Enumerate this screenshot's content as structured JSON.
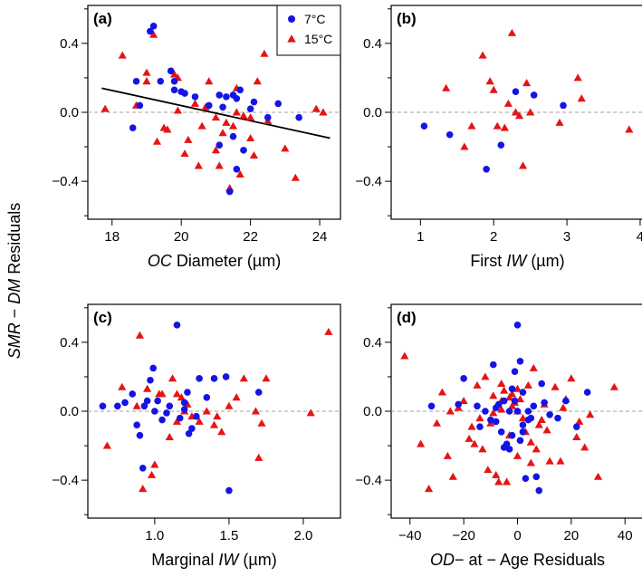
{
  "figure": {
    "ylabel_parts": [
      {
        "text": "SMR",
        "italic": true
      },
      {
        "text": " − ",
        "italic": false
      },
      {
        "text": "DM",
        "italic": true
      },
      {
        "text": " Residuals",
        "italic": false
      }
    ],
    "colors": {
      "blue": "#1414e6",
      "red": "#e61414",
      "zero_line": "#a0a0a0",
      "trend": "#000000"
    }
  },
  "legend": {
    "entries": [
      {
        "label": "7°C",
        "series": "7C",
        "marker": "circle"
      },
      {
        "label": "15°C",
        "series": "15C",
        "marker": "triangle"
      }
    ]
  },
  "chart_data": [
    {
      "type": "scatter",
      "panel": "(a)",
      "xlabel_parts": [
        {
          "text": "OC",
          "italic": true
        },
        {
          "text": " Diameter (µm)",
          "italic": false
        }
      ],
      "xlim": [
        17.3,
        24.6
      ],
      "ylim": [
        -0.62,
        0.62
      ],
      "xticks": [
        18,
        20,
        22,
        24
      ],
      "yticks": [
        -0.4,
        0.0,
        0.4
      ],
      "yticks_minor": [
        -0.6,
        -0.2,
        0.2,
        0.6
      ],
      "zero_line": true,
      "trend_line": {
        "x": [
          17.7,
          24.3
        ],
        "y": [
          0.14,
          -0.15
        ]
      },
      "series": [
        {
          "name": "7C",
          "label": "7°C",
          "x": [
            18.6,
            18.7,
            18.8,
            19.2,
            19.1,
            19.4,
            19.7,
            19.8,
            19.8,
            20.0,
            20.1,
            20.4,
            20.8,
            21.1,
            21.2,
            21.5,
            21.6,
            21.5,
            21.4,
            21.6,
            21.8,
            22.0,
            22.1,
            22.5,
            22.8,
            23.4,
            21.3,
            21.7,
            21.1
          ],
          "y": [
            -0.09,
            0.18,
            0.04,
            0.5,
            0.47,
            0.18,
            0.24,
            0.18,
            0.13,
            0.12,
            0.11,
            0.09,
            0.04,
            0.1,
            0.03,
            0.1,
            0.08,
            -0.14,
            -0.46,
            -0.33,
            -0.22,
            0.02,
            0.06,
            -0.03,
            0.05,
            -0.03,
            0.09,
            0.13,
            -0.19
          ]
        },
        {
          "name": "15C",
          "label": "15°C",
          "x": [
            17.8,
            18.3,
            18.7,
            19.0,
            19.0,
            19.2,
            19.3,
            19.5,
            19.6,
            19.8,
            19.9,
            20.1,
            20.2,
            20.5,
            20.6,
            20.7,
            20.8,
            21.0,
            21.1,
            21.2,
            21.3,
            21.4,
            21.5,
            21.6,
            21.7,
            21.8,
            22.0,
            22.1,
            22.2,
            22.4,
            22.5,
            23.0,
            23.3,
            23.9,
            24.1,
            19.9,
            20.4,
            21.6,
            22.0,
            21.0
          ],
          "y": [
            0.02,
            0.33,
            0.04,
            0.23,
            0.18,
            0.45,
            -0.17,
            -0.09,
            -0.1,
            0.22,
            0.2,
            -0.24,
            -0.16,
            -0.31,
            -0.08,
            0.03,
            0.18,
            -0.22,
            -0.31,
            -0.12,
            -0.06,
            -0.44,
            -0.08,
            0.14,
            -0.36,
            -0.02,
            -0.03,
            -0.25,
            0.18,
            0.34,
            -0.05,
            -0.21,
            -0.38,
            0.02,
            0.0,
            0.01,
            0.05,
            0.0,
            -0.15,
            -0.03
          ]
        }
      ]
    },
    {
      "type": "scatter",
      "panel": "(b)",
      "xlabel_parts": [
        {
          "text": "First ",
          "italic": false
        },
        {
          "text": "IW",
          "italic": true
        },
        {
          "text": " (µm)",
          "italic": false
        }
      ],
      "xlim": [
        0.6,
        4.05
      ],
      "ylim": [
        -0.62,
        0.62
      ],
      "xticks": [
        1,
        2,
        3,
        4
      ],
      "yticks": [
        -0.4,
        0.0,
        0.4
      ],
      "yticks_minor": [
        -0.6,
        -0.2,
        0.2,
        0.6
      ],
      "zero_line": true,
      "series": [
        {
          "name": "7C",
          "label": "7°C",
          "x": [
            1.05,
            1.4,
            1.9,
            2.1,
            2.3,
            2.55,
            2.95
          ],
          "y": [
            -0.08,
            -0.13,
            -0.33,
            -0.19,
            0.12,
            0.1,
            0.04
          ]
        },
        {
          "name": "15C",
          "label": "15°C",
          "x": [
            1.35,
            1.6,
            1.7,
            1.85,
            1.95,
            2.0,
            2.05,
            2.2,
            2.25,
            2.3,
            2.35,
            2.4,
            2.45,
            2.5,
            2.9,
            3.15,
            3.2,
            3.85,
            2.15
          ],
          "y": [
            0.14,
            -0.2,
            -0.08,
            0.33,
            0.18,
            0.13,
            -0.08,
            0.05,
            0.46,
            0.0,
            -0.02,
            -0.31,
            0.17,
            0.0,
            -0.06,
            0.2,
            0.08,
            -0.1,
            -0.09
          ]
        }
      ]
    },
    {
      "type": "scatter",
      "panel": "(c)",
      "xlabel_parts": [
        {
          "text": "Marginal ",
          "italic": false
        },
        {
          "text": "IW",
          "italic": true
        },
        {
          "text": " (µm)",
          "italic": false
        }
      ],
      "xlim": [
        0.55,
        2.25
      ],
      "ylim": [
        -0.62,
        0.62
      ],
      "xticks": [
        1.0,
        1.5,
        2.0
      ],
      "yticks": [
        -0.4,
        0.0,
        0.4
      ],
      "yticks_minor": [
        -0.6,
        -0.2,
        0.2,
        0.6
      ],
      "zero_line": true,
      "series": [
        {
          "name": "7C",
          "label": "7°C",
          "x": [
            0.65,
            0.75,
            0.8,
            0.85,
            0.88,
            0.9,
            0.92,
            0.95,
            0.97,
            0.99,
            1.0,
            1.02,
            1.05,
            1.08,
            1.1,
            1.15,
            1.17,
            1.2,
            1.22,
            1.25,
            1.28,
            1.3,
            1.35,
            1.4,
            1.48,
            1.5,
            1.7,
            1.2,
            1.23,
            0.93
          ],
          "y": [
            0.03,
            0.03,
            0.05,
            0.1,
            -0.08,
            -0.14,
            -0.33,
            0.06,
            0.18,
            0.25,
            0.0,
            0.06,
            -0.05,
            -0.01,
            0.03,
            0.5,
            -0.04,
            0.01,
            0.11,
            -0.1,
            -0.03,
            0.19,
            0.08,
            0.19,
            0.2,
            -0.46,
            0.11,
            0.05,
            -0.13,
            0.03
          ]
        },
        {
          "name": "15C",
          "label": "15°C",
          "x": [
            0.68,
            0.78,
            0.88,
            0.9,
            0.92,
            0.95,
            0.98,
            1.0,
            1.03,
            1.05,
            1.1,
            1.12,
            1.15,
            1.18,
            1.2,
            1.22,
            1.25,
            1.3,
            1.35,
            1.4,
            1.45,
            1.5,
            1.55,
            1.6,
            1.7,
            1.72,
            1.75,
            2.05,
            2.17,
            1.68,
            1.42,
            1.15
          ],
          "y": [
            -0.2,
            0.14,
            0.03,
            0.44,
            -0.45,
            0.13,
            -0.37,
            -0.31,
            0.1,
            0.1,
            -0.15,
            0.19,
            -0.06,
            0.08,
            0.0,
            0.04,
            -0.03,
            -0.06,
            0.0,
            -0.08,
            -0.12,
            0.03,
            0.08,
            0.19,
            -0.27,
            -0.07,
            0.19,
            -0.01,
            0.46,
            0.0,
            -0.03,
            0.1
          ]
        }
      ]
    },
    {
      "type": "scatter",
      "panel": "(d)",
      "xlabel_parts": [
        {
          "text": "OD",
          "italic": true
        },
        {
          "text": "− at − Age Residuals",
          "italic": false
        }
      ],
      "xlim": [
        -47,
        47
      ],
      "ylim": [
        -0.62,
        0.62
      ],
      "xticks": [
        -40,
        -20,
        0,
        20,
        40
      ],
      "yticks": [
        -0.4,
        0.0,
        0.4
      ],
      "yticks_minor": [
        -0.6,
        -0.2,
        0.2,
        0.6
      ],
      "zero_line": true,
      "series": [
        {
          "name": "7C",
          "label": "7°C",
          "x": [
            -32,
            -22,
            -15,
            -12,
            -10,
            -9,
            -8,
            -7,
            -6,
            -5,
            -5,
            -4,
            -3,
            -2,
            -2,
            -1,
            -1,
            0,
            0,
            1,
            1,
            2,
            2,
            3,
            4,
            5,
            6,
            7,
            8,
            9,
            10,
            12,
            15,
            18,
            22,
            26,
            -20,
            -14,
            -3,
            4,
            -8,
            2
          ],
          "y": [
            0.03,
            0.04,
            0.03,
            0.0,
            -0.05,
            0.27,
            -0.06,
            0.04,
            -0.12,
            -0.21,
            0.06,
            -0.19,
            0.0,
            -0.14,
            0.13,
            0.06,
            0.23,
            0.5,
            0.0,
            0.29,
            -0.17,
            -0.08,
            0.11,
            -0.39,
            -0.05,
            -0.04,
            0.03,
            -0.38,
            -0.46,
            0.16,
            0.05,
            -0.02,
            -0.04,
            0.06,
            -0.09,
            0.11,
            0.19,
            -0.09,
            -0.22,
            0.0,
            0.02,
            -0.12
          ]
        },
        {
          "name": "15C",
          "label": "15°C",
          "x": [
            -42,
            -36,
            -33,
            -30,
            -28,
            -26,
            -24,
            -22,
            -20,
            -18,
            -16,
            -15,
            -14,
            -13,
            -12,
            -11,
            -10,
            -9,
            -8,
            -7,
            -6,
            -6,
            -5,
            -4,
            -3,
            -3,
            -2,
            -1,
            0,
            0,
            1,
            2,
            3,
            4,
            5,
            6,
            7,
            8,
            9,
            10,
            12,
            14,
            16,
            18,
            20,
            22,
            25,
            27,
            30,
            36,
            -25,
            -17,
            -9,
            -2,
            5,
            11,
            17,
            23,
            -6,
            0
          ],
          "y": [
            0.32,
            -0.19,
            -0.45,
            -0.07,
            0.11,
            -0.26,
            -0.38,
            0.02,
            0.06,
            -0.16,
            -0.19,
            0.15,
            -0.04,
            -0.22,
            0.2,
            -0.34,
            -0.07,
            0.09,
            -0.37,
            -0.41,
            0.01,
            0.16,
            0.12,
            -0.41,
            0.08,
            -0.14,
            0.1,
            0.05,
            0.0,
            0.13,
            0.07,
            -0.04,
            -0.12,
            0.15,
            -0.18,
            0.25,
            -0.22,
            -0.08,
            -0.05,
            0.04,
            -0.29,
            0.14,
            -0.29,
            0.07,
            0.19,
            -0.15,
            -0.21,
            -0.02,
            -0.38,
            0.14,
            0.0,
            -0.09,
            -0.01,
            0.03,
            -0.3,
            -0.11,
            0.02,
            -0.06,
            0.06,
            -0.26
          ]
        }
      ]
    }
  ]
}
